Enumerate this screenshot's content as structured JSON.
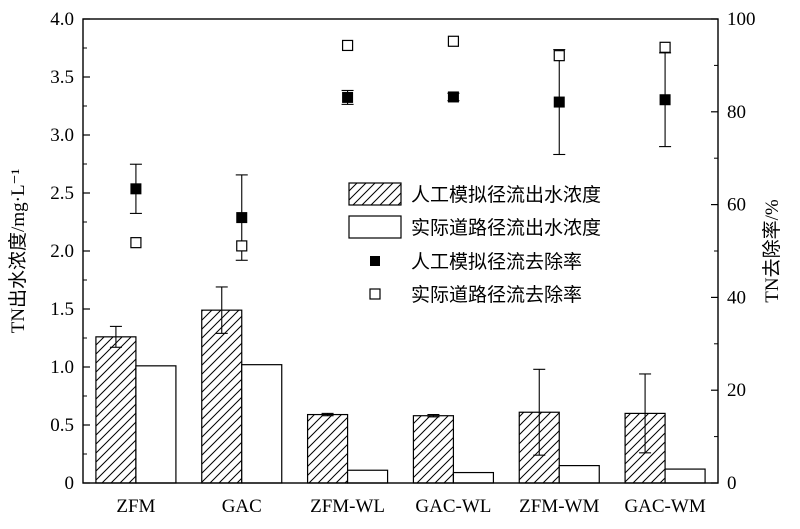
{
  "chart_data": {
    "type": "bar",
    "categories": [
      "ZFM",
      "GAC",
      "ZFM-WL",
      "GAC-WL",
      "ZFM-WM",
      "GAC-WM"
    ],
    "y_left": {
      "label": "TN出水浓度/mg·L⁻¹",
      "ylim": [
        0,
        4.0
      ],
      "ticks": [
        0,
        0.5,
        1.0,
        1.5,
        2.0,
        2.5,
        3.0,
        3.5,
        4.0
      ],
      "tick_labels": [
        "0",
        "0.5",
        "1.0",
        "1.5",
        "2.0",
        "2.5",
        "3.0",
        "3.5",
        "4.0"
      ]
    },
    "y_right": {
      "label": "TN去除率/%",
      "ylim": [
        0,
        100
      ],
      "ticks": [
        0,
        20,
        40,
        60,
        80,
        100
      ],
      "tick_labels": [
        "0",
        "20",
        "40",
        "60",
        "80",
        "100"
      ]
    },
    "series": [
      {
        "name": "人工模拟径流出水浓度",
        "kind": "bar",
        "style": "hatched",
        "axis": "left",
        "values": [
          1.26,
          1.49,
          0.59,
          0.58,
          0.61,
          0.6
        ],
        "errors": [
          0.09,
          0.2,
          0.01,
          0.01,
          0.37,
          0.34
        ]
      },
      {
        "name": "实际道路径流出水浓度",
        "kind": "bar",
        "style": "open",
        "axis": "left",
        "values": [
          1.01,
          1.02,
          0.11,
          0.09,
          0.15,
          0.12
        ]
      },
      {
        "name": "人工模拟径流去除率",
        "kind": "scatter",
        "marker": "filled-square",
        "axis": "right",
        "values": [
          63.4,
          57.2,
          83.1,
          83.2,
          82.1,
          82.6
        ],
        "errors": [
          5.3,
          9.2,
          1.5,
          0.8,
          11.3,
          10.1
        ]
      },
      {
        "name": "实际道路径流去除率",
        "kind": "scatter",
        "marker": "open-square",
        "axis": "right",
        "values": [
          51.8,
          51.1,
          94.3,
          95.2,
          92.1,
          93.9
        ]
      }
    ],
    "legend": {
      "placement": "center-right"
    },
    "grid": false
  }
}
